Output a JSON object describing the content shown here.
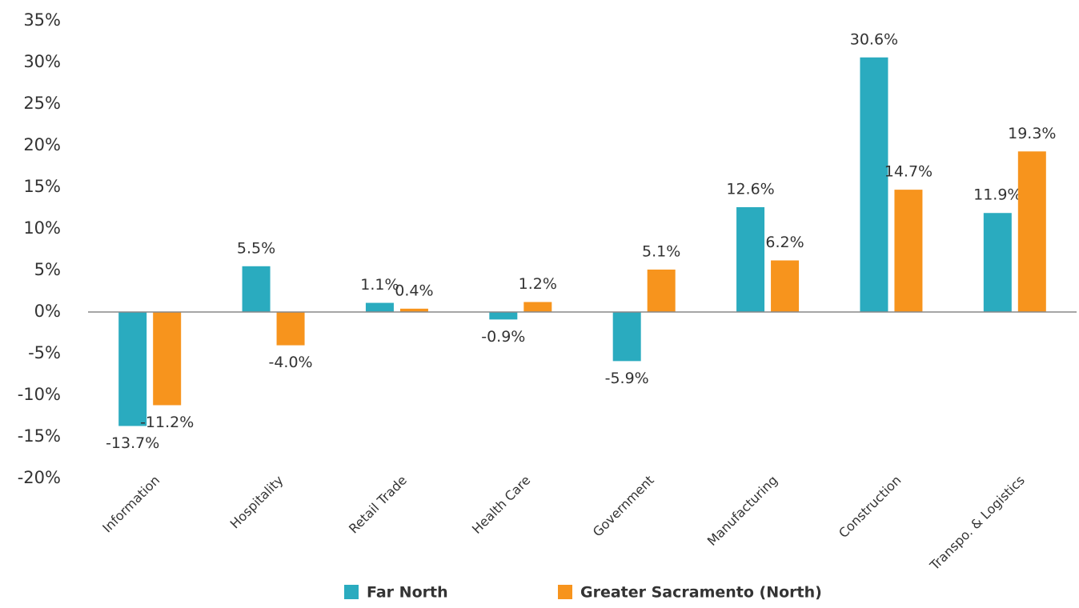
{
  "chart_data": {
    "type": "bar",
    "categories": [
      "Information",
      "Hospitality",
      "Retail Trade",
      "Health Care",
      "Government",
      "Manufacturing",
      "Construction",
      "Transpo. & Logistics"
    ],
    "series": [
      {
        "name": "Far North",
        "color": "#2aabbf",
        "values": [
          -13.7,
          5.5,
          1.1,
          -0.9,
          -5.9,
          12.6,
          30.6,
          11.9
        ],
        "value_labels": [
          "-13.7%",
          "5.5%",
          "1.1%",
          "-0.9%",
          "-5.9%",
          "12.6%",
          "30.6%",
          "11.9%"
        ]
      },
      {
        "name": "Greater Sacramento (North)",
        "color": "#f7941d",
        "values": [
          -11.2,
          -4.0,
          0.4,
          1.2,
          5.1,
          6.2,
          14.7,
          19.3
        ],
        "value_labels": [
          "-11.2%",
          "-4.0%",
          "0.4%",
          "1.2%",
          "5.1%",
          "6.2%",
          "14.7%",
          "19.3%"
        ]
      }
    ],
    "ylim": [
      -20,
      35
    ],
    "yticks": [
      {
        "value": -20,
        "label": "-20%"
      },
      {
        "value": -15,
        "label": "-15%"
      },
      {
        "value": -10,
        "label": "-10%"
      },
      {
        "value": -5,
        "label": "-5%"
      },
      {
        "value": 0,
        "label": "0%"
      },
      {
        "value": 5,
        "label": "5%"
      },
      {
        "value": 10,
        "label": "10%"
      },
      {
        "value": 15,
        "label": "15%"
      },
      {
        "value": 20,
        "label": "20%"
      },
      {
        "value": 25,
        "label": "25%"
      },
      {
        "value": 30,
        "label": "30%"
      },
      {
        "value": 35,
        "label": "35%"
      }
    ],
    "grid": false,
    "legend": "bottom"
  }
}
